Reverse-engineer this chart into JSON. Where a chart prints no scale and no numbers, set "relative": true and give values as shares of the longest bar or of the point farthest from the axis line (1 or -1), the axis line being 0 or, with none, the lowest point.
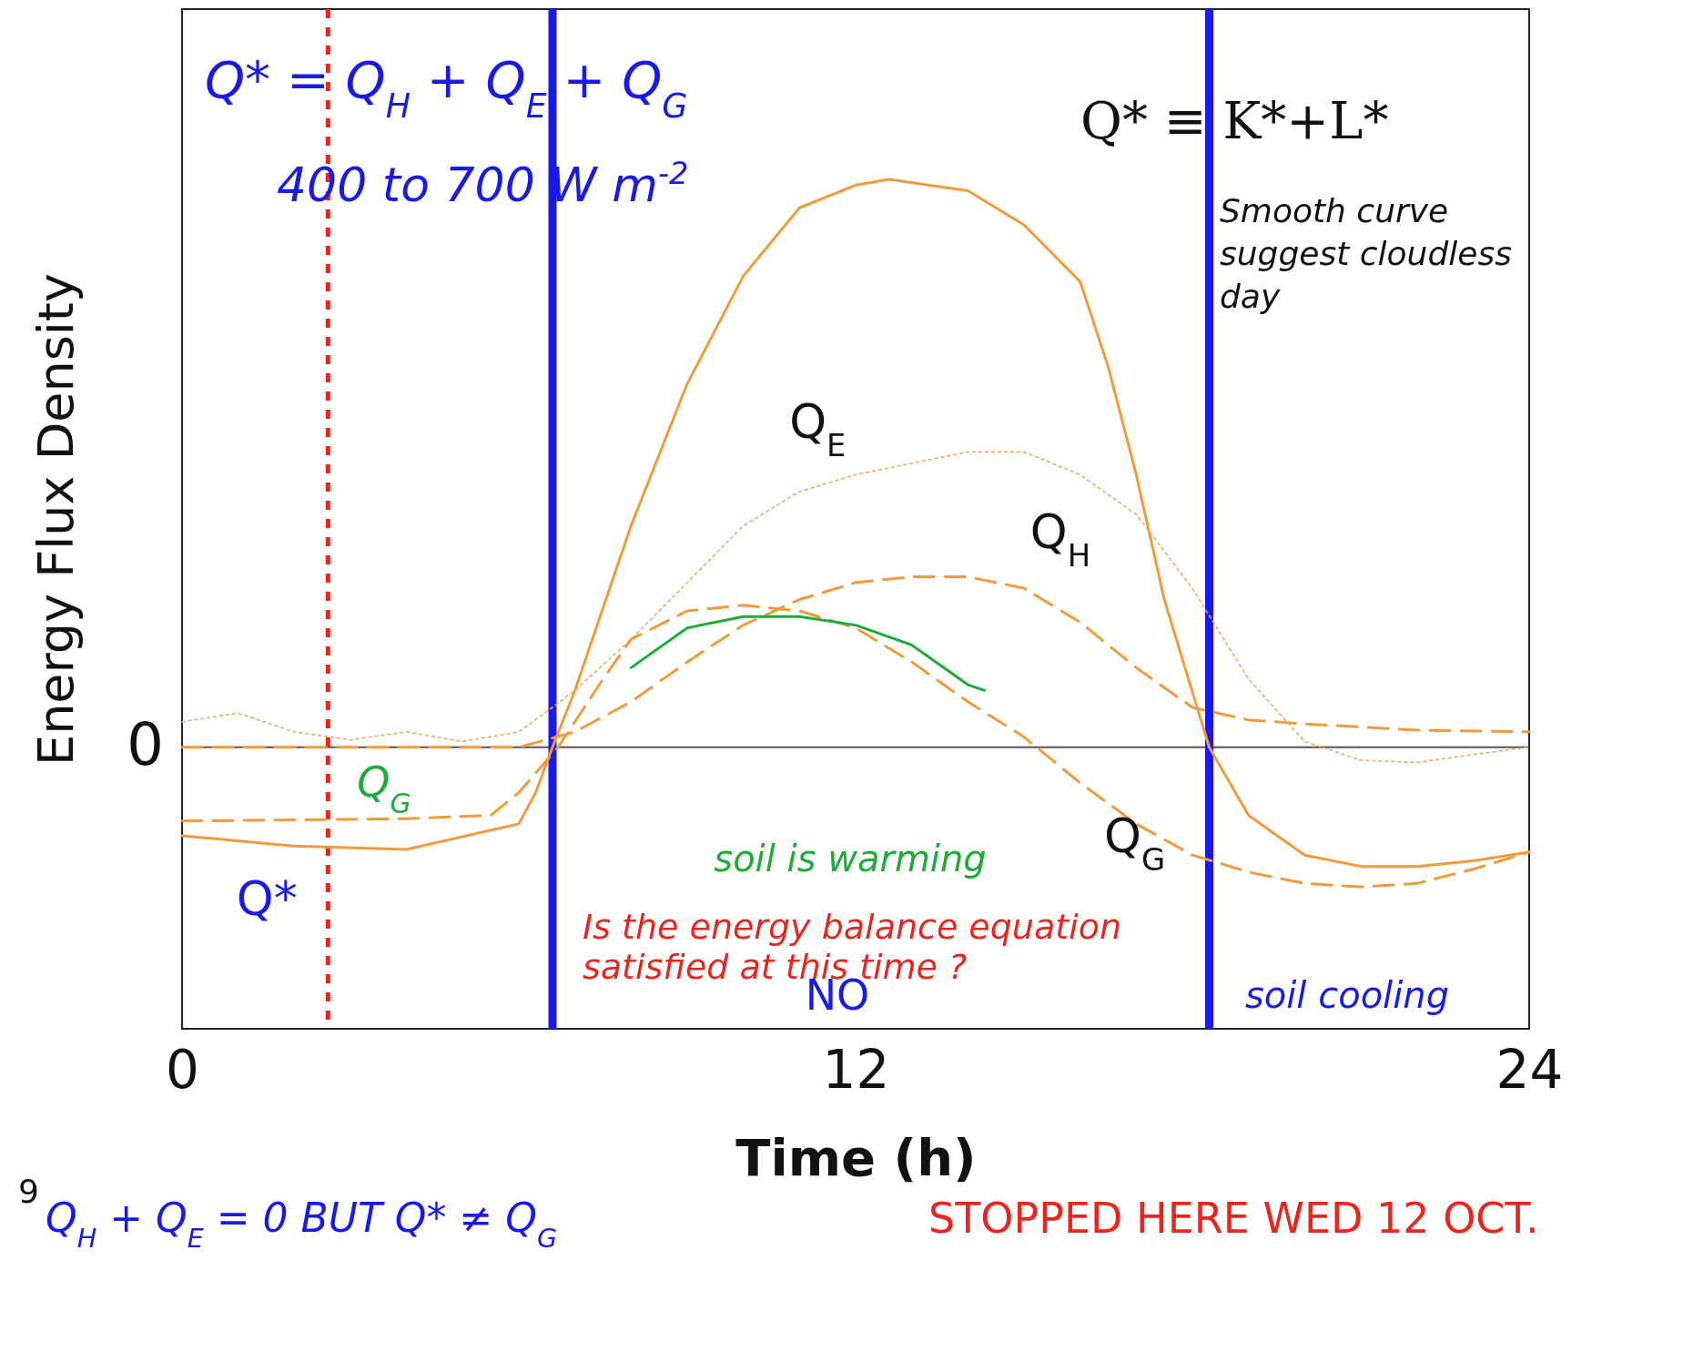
{
  "chart_data": {
    "type": "line",
    "relative": true,
    "xlabel": "Time (h)",
    "ylabel": "Energy Flux Density",
    "xlim": [
      0,
      24
    ],
    "xticks": [
      0,
      12,
      24
    ],
    "grid": false,
    "series": [
      {
        "name": "Q*",
        "color": "#f39a3c",
        "line_style": "solid",
        "x": [
          0,
          2,
          4,
          6,
          6.3,
          6.6,
          7,
          8,
          9,
          10,
          11,
          12,
          12.6,
          14,
          15,
          16,
          16.5,
          17,
          17.5,
          18.3,
          19,
          20,
          21,
          22,
          23,
          24
        ],
        "values": [
          -0.156,
          -0.174,
          -0.18,
          -0.135,
          -0.08,
          0,
          0.1,
          0.39,
          0.64,
          0.83,
          0.95,
          0.99,
          1,
          0.98,
          0.92,
          0.82,
          0.67,
          0.48,
          0.26,
          0,
          -0.12,
          -0.19,
          -0.21,
          -0.21,
          -0.2,
          -0.185
        ]
      },
      {
        "name": "Q$_{E}$",
        "color": "#f5a862",
        "line_style": "dotted",
        "x": [
          0,
          1,
          2,
          3,
          4,
          5,
          6,
          6.5,
          7,
          8,
          9,
          10,
          11,
          12,
          13,
          14,
          15,
          16,
          17,
          18,
          19,
          20,
          21,
          22,
          23,
          24
        ],
        "values": [
          0.045,
          0.06,
          0.027,
          0.013,
          0.027,
          0.01,
          0.027,
          0.063,
          0.1,
          0.19,
          0.29,
          0.39,
          0.45,
          0.48,
          0.5,
          0.52,
          0.52,
          0.48,
          0.41,
          0.28,
          0.12,
          0.01,
          -0.023,
          -0.027,
          -0.013,
          0
        ]
      },
      {
        "name": "Q$_{H}$",
        "color": "#f39a3c",
        "line_style": "dashed",
        "x": [
          0,
          6,
          7,
          8,
          9,
          10,
          11,
          12,
          13,
          14,
          15,
          16,
          17,
          18,
          19,
          20,
          22,
          24
        ],
        "values": [
          0,
          0,
          0.027,
          0.08,
          0.15,
          0.215,
          0.26,
          0.29,
          0.3,
          0.3,
          0.28,
          0.22,
          0.14,
          0.07,
          0.048,
          0.041,
          0.03,
          0.027
        ]
      },
      {
        "name": "Q$_{G}$",
        "color": "#f39a3c",
        "line_style": "dashed",
        "x": [
          0,
          4,
          5.5,
          6,
          6.7,
          7.5,
          8,
          9,
          10,
          11,
          12,
          13,
          14,
          15,
          16,
          17,
          18,
          19,
          20,
          21,
          22,
          23,
          24
        ],
        "values": [
          -0.13,
          -0.126,
          -0.12,
          -0.08,
          0,
          0.12,
          0.19,
          0.24,
          0.25,
          0.24,
          0.21,
          0.15,
          0.08,
          0.018,
          -0.063,
          -0.135,
          -0.19,
          -0.22,
          -0.24,
          -0.246,
          -0.24,
          -0.215,
          -0.185
        ]
      },
      {
        "color": "#1faa3a",
        "line_style": "solid",
        "x": [
          8,
          9,
          10,
          11,
          12,
          13,
          14,
          14.3
        ],
        "values": [
          0.14,
          0.21,
          0.23,
          0.23,
          0.215,
          0.18,
          0.11,
          0.1
        ]
      }
    ],
    "ref_lines": [
      {
        "axis": "x",
        "value": 2.6,
        "color": "#e8251f",
        "line_style": "dotted"
      },
      {
        "axis": "x",
        "value": 6.6,
        "color": "#1a1ae6",
        "line_style": "solid"
      },
      {
        "axis": "x",
        "value": 18.3,
        "color": "#1a1ae6",
        "line_style": "solid"
      }
    ],
    "annotations": [
      "Q* = Q$_{H}$ + Q$_{E}$ + Q$_{G}$",
      "400 to 700 W m$^{-2}$",
      "Is the energy balance equation satisfied at this time ?",
      "NO",
      "Q$_{H}$ + Q$_{E}$ = 0 BUT Q* ≠ Q$_{G}$",
      "STOPPED HERE WED 12 OCT.",
      "9",
      "0",
      "Q* ≡ K*+L*",
      "Smooth curve suggest cloudless day",
      "soil is warming",
      "soil cooling",
      "Q$_{G}$"
    ]
  }
}
